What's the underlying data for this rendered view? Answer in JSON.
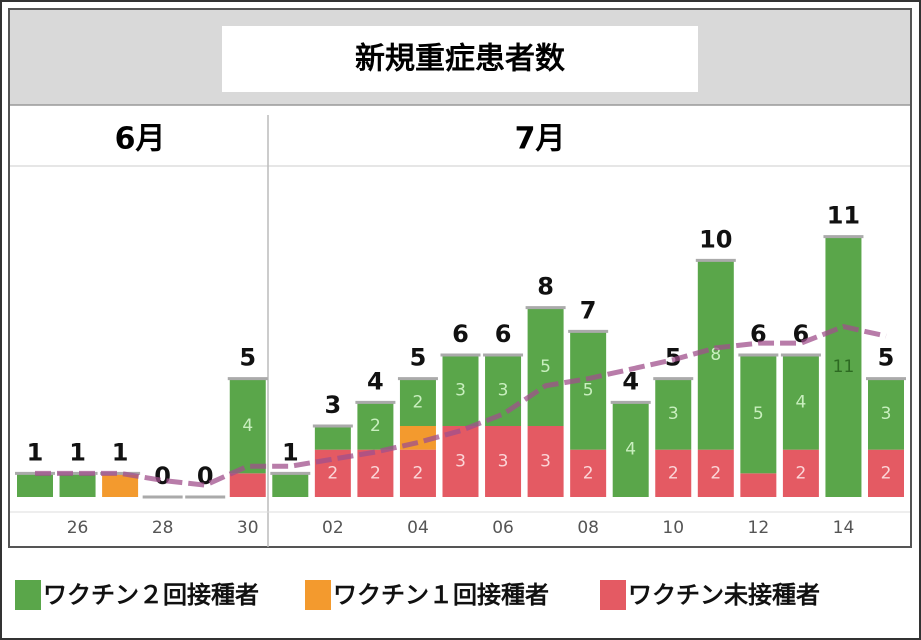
{
  "chart_data": {
    "type": "stacked-bar",
    "title": "新規重症患者数",
    "months": [
      "6月",
      "7月"
    ],
    "categories": [
      null,
      "26",
      null,
      "28",
      null,
      "30",
      null,
      "02",
      null,
      "04",
      null,
      "06",
      null,
      "08",
      null,
      "10",
      null,
      "12",
      null,
      "14",
      null
    ],
    "series": [
      {
        "name": "ワクチン２回接種者",
        "color": "#5aa64a",
        "label_color": "#c9efbf",
        "values": [
          1,
          1,
          0,
          0,
          0,
          4,
          1,
          1,
          2,
          2,
          3,
          3,
          5,
          5,
          4,
          3,
          8,
          5,
          4,
          11,
          3
        ]
      },
      {
        "name": "ワクチン１回接種者",
        "color": "#f39a2e",
        "label_color": "#fde3c0",
        "values": [
          0,
          0,
          1,
          0,
          0,
          0,
          0,
          0,
          0,
          1,
          0,
          0,
          0,
          0,
          0,
          0,
          0,
          0,
          0,
          0,
          0
        ]
      },
      {
        "name": "ワクチン未接種者",
        "color": "#e45a63",
        "label_color": "#fbd6d8",
        "values": [
          0,
          0,
          0,
          0,
          0,
          1,
          0,
          2,
          2,
          2,
          3,
          3,
          3,
          2,
          0,
          2,
          2,
          1,
          2,
          0,
          2
        ]
      }
    ],
    "totals": [
      1,
      1,
      1,
      0,
      0,
      5,
      1,
      3,
      4,
      5,
      6,
      6,
      8,
      7,
      4,
      5,
      10,
      6,
      6,
      11,
      5
    ],
    "trend": {
      "color": "#a0508c",
      "values": [
        1.0,
        1.0,
        1.0,
        0.7,
        0.5,
        1.3,
        1.3,
        1.6,
        1.9,
        2.3,
        2.8,
        3.5,
        4.7,
        5.0,
        5.4,
        5.8,
        6.3,
        6.5,
        6.5,
        7.2,
        6.8
      ]
    },
    "ylim": [
      0,
      12
    ]
  }
}
